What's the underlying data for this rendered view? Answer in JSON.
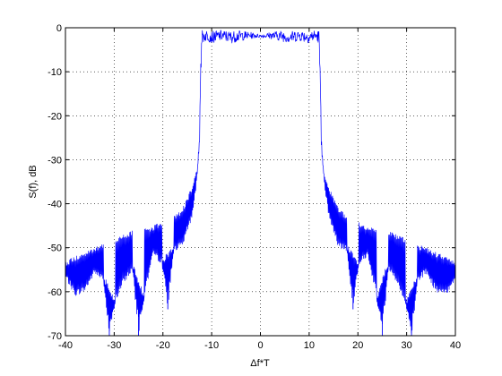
{
  "chart_data": {
    "type": "line",
    "title": "",
    "xlabel": "Δf*T",
    "ylabel": "S(f), dB",
    "xlim": [
      -40,
      40
    ],
    "ylim": [
      -70,
      0
    ],
    "xticks": [
      -40,
      -30,
      -20,
      -10,
      0,
      10,
      20,
      30,
      40
    ],
    "yticks": [
      0,
      -10,
      -20,
      -30,
      -40,
      -50,
      -60,
      -70
    ],
    "grid": true,
    "legend": "none",
    "line_color": "#0000ff",
    "series": [
      {
        "envelope_upper": {
          "x": [
            -40,
            -38,
            -36,
            -34,
            -32,
            -30,
            -28,
            -26,
            -24,
            -22,
            -20,
            -18,
            -16,
            -14,
            -13,
            -12.5,
            -12.3,
            -12,
            -11,
            -10,
            -8,
            -6,
            -4,
            -2,
            0,
            2,
            4,
            6,
            8,
            10,
            11,
            12,
            12.3,
            12.5,
            13,
            14,
            16,
            18,
            20,
            22,
            24,
            26,
            28,
            30,
            32,
            34,
            36,
            38,
            40
          ],
          "y": [
            -53,
            -52,
            -51,
            -50,
            -49,
            -48,
            -47,
            -46,
            -45.5,
            -45,
            -44,
            -43,
            -41,
            -36,
            -32,
            -25,
            -10,
            -0.5,
            -0.5,
            -0.8,
            -0.5,
            -0.8,
            -0.6,
            -1,
            -1.5,
            -1,
            -0.6,
            -0.8,
            -0.5,
            -0.8,
            -0.5,
            -0.5,
            -10,
            -25,
            -32,
            -36,
            -41,
            -43,
            -44,
            -45,
            -45.5,
            -46,
            -47,
            -48,
            -49,
            -50,
            -51,
            -52,
            -53
          ]
        },
        "envelope_lower": {
          "x": [
            -40,
            -38,
            -36,
            -34,
            -32,
            -30,
            -28,
            -26,
            -24,
            -22,
            -20,
            -18,
            -16,
            -14,
            -13,
            -12.5,
            -12.3,
            -12,
            -11,
            -10,
            -8,
            -6,
            -4,
            -2,
            0,
            2,
            4,
            6,
            8,
            10,
            11,
            12,
            12.3,
            12.5,
            13,
            14,
            16,
            18,
            20,
            22,
            24,
            26,
            28,
            30,
            32,
            34,
            36,
            38,
            40
          ],
          "y": [
            -57,
            -61,
            -60,
            -56,
            -58,
            -63,
            -58,
            -55,
            -62,
            -52,
            -54,
            -51,
            -50,
            -43,
            -35,
            -28,
            -14,
            -3.5,
            -3,
            -3.5,
            -3,
            -3.5,
            -3,
            -2.5,
            -2.2,
            -2.5,
            -3,
            -3.5,
            -3,
            -3.5,
            -3,
            -3.5,
            -14,
            -28,
            -35,
            -43,
            -50,
            -51,
            -54,
            -52,
            -62,
            -55,
            -58,
            -63,
            -58,
            -56,
            -60,
            -61,
            -57
          ]
        },
        "nulls": [
          {
            "x": -31,
            "y": -70
          },
          {
            "x": -25,
            "y": -70
          },
          {
            "x": -19,
            "y": -64
          },
          {
            "x": 19,
            "y": -64
          },
          {
            "x": 25,
            "y": -70
          },
          {
            "x": 31,
            "y": -70
          }
        ]
      }
    ]
  }
}
